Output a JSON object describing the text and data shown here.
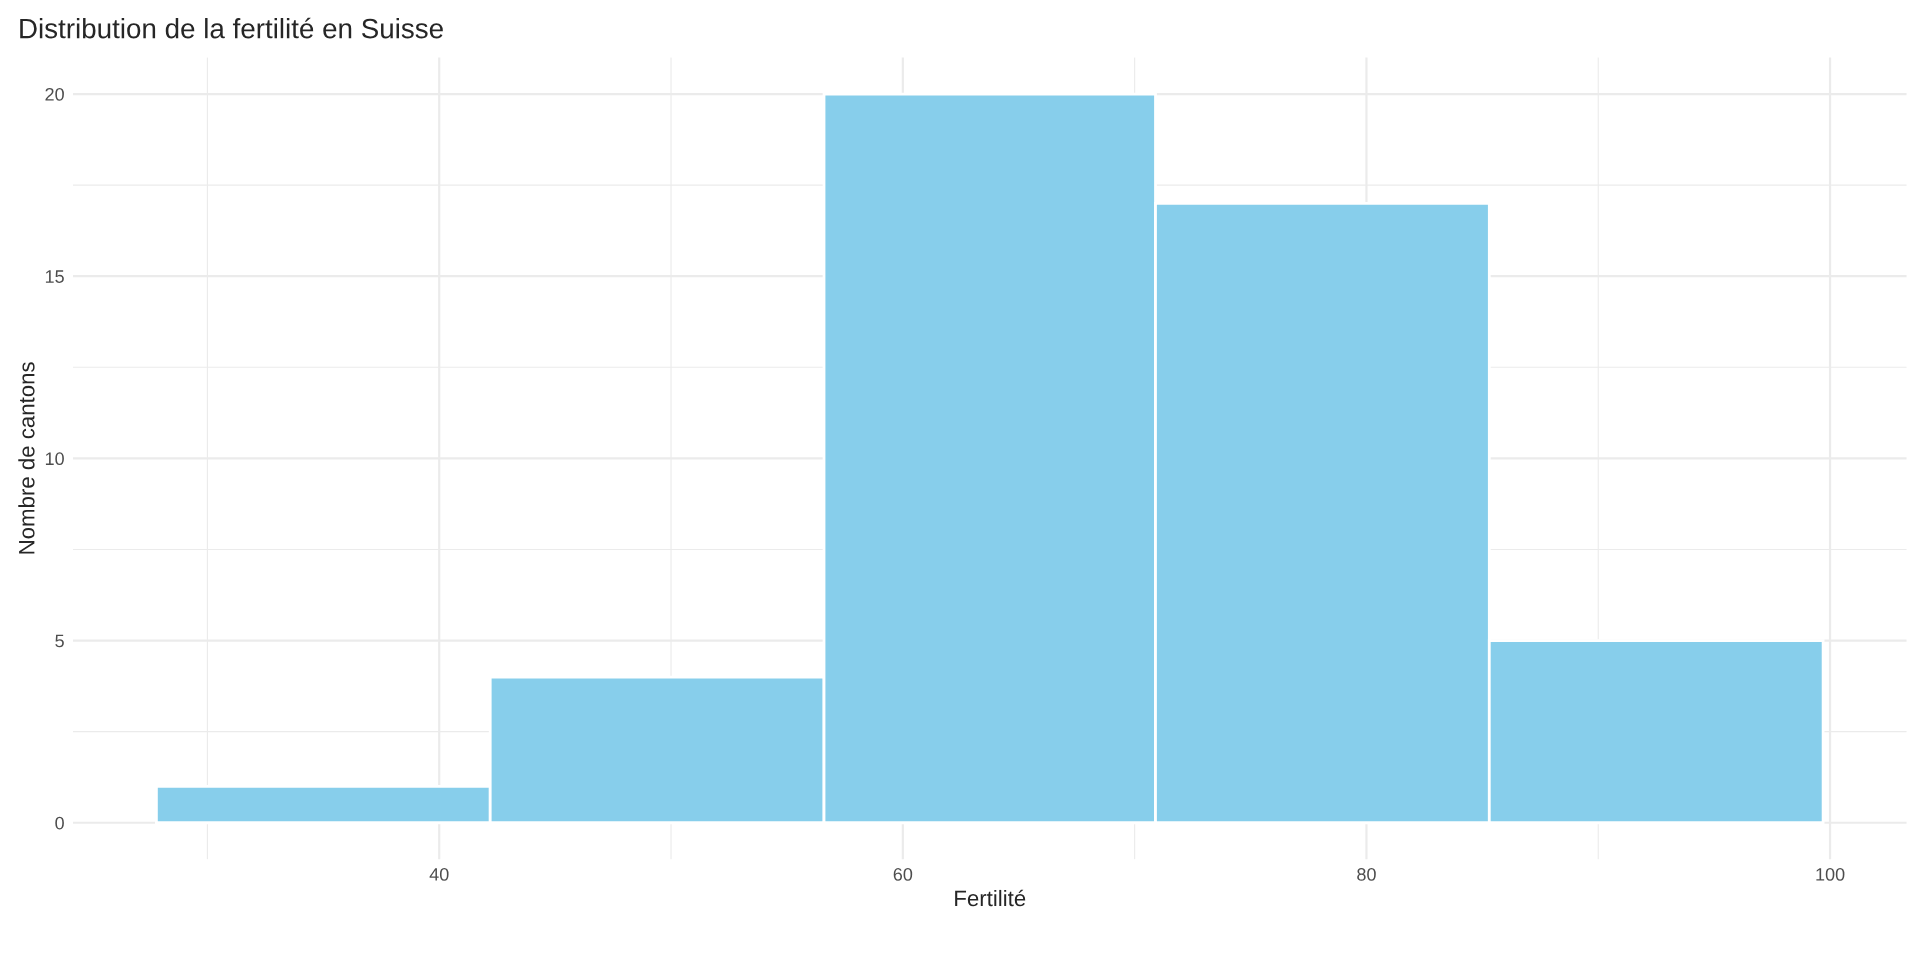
{
  "chart_data": {
    "type": "histogram",
    "title": "Distribution de la fertilité en Suisse",
    "xlabel": "Fertilité",
    "ylabel": "Nombre de cantons",
    "bins": [
      27.8,
      42.2,
      56.6,
      70.9,
      85.3,
      99.7
    ],
    "values": [
      1,
      4,
      20,
      17,
      5
    ],
    "color": "#87ceeb",
    "xlim": [
      24.2,
      103.3
    ],
    "xticks": [
      40,
      60,
      80,
      100
    ],
    "ylim": [
      -1,
      21
    ],
    "yticks": [
      0,
      5,
      10,
      15,
      20
    ],
    "grid": true,
    "legend": false
  }
}
